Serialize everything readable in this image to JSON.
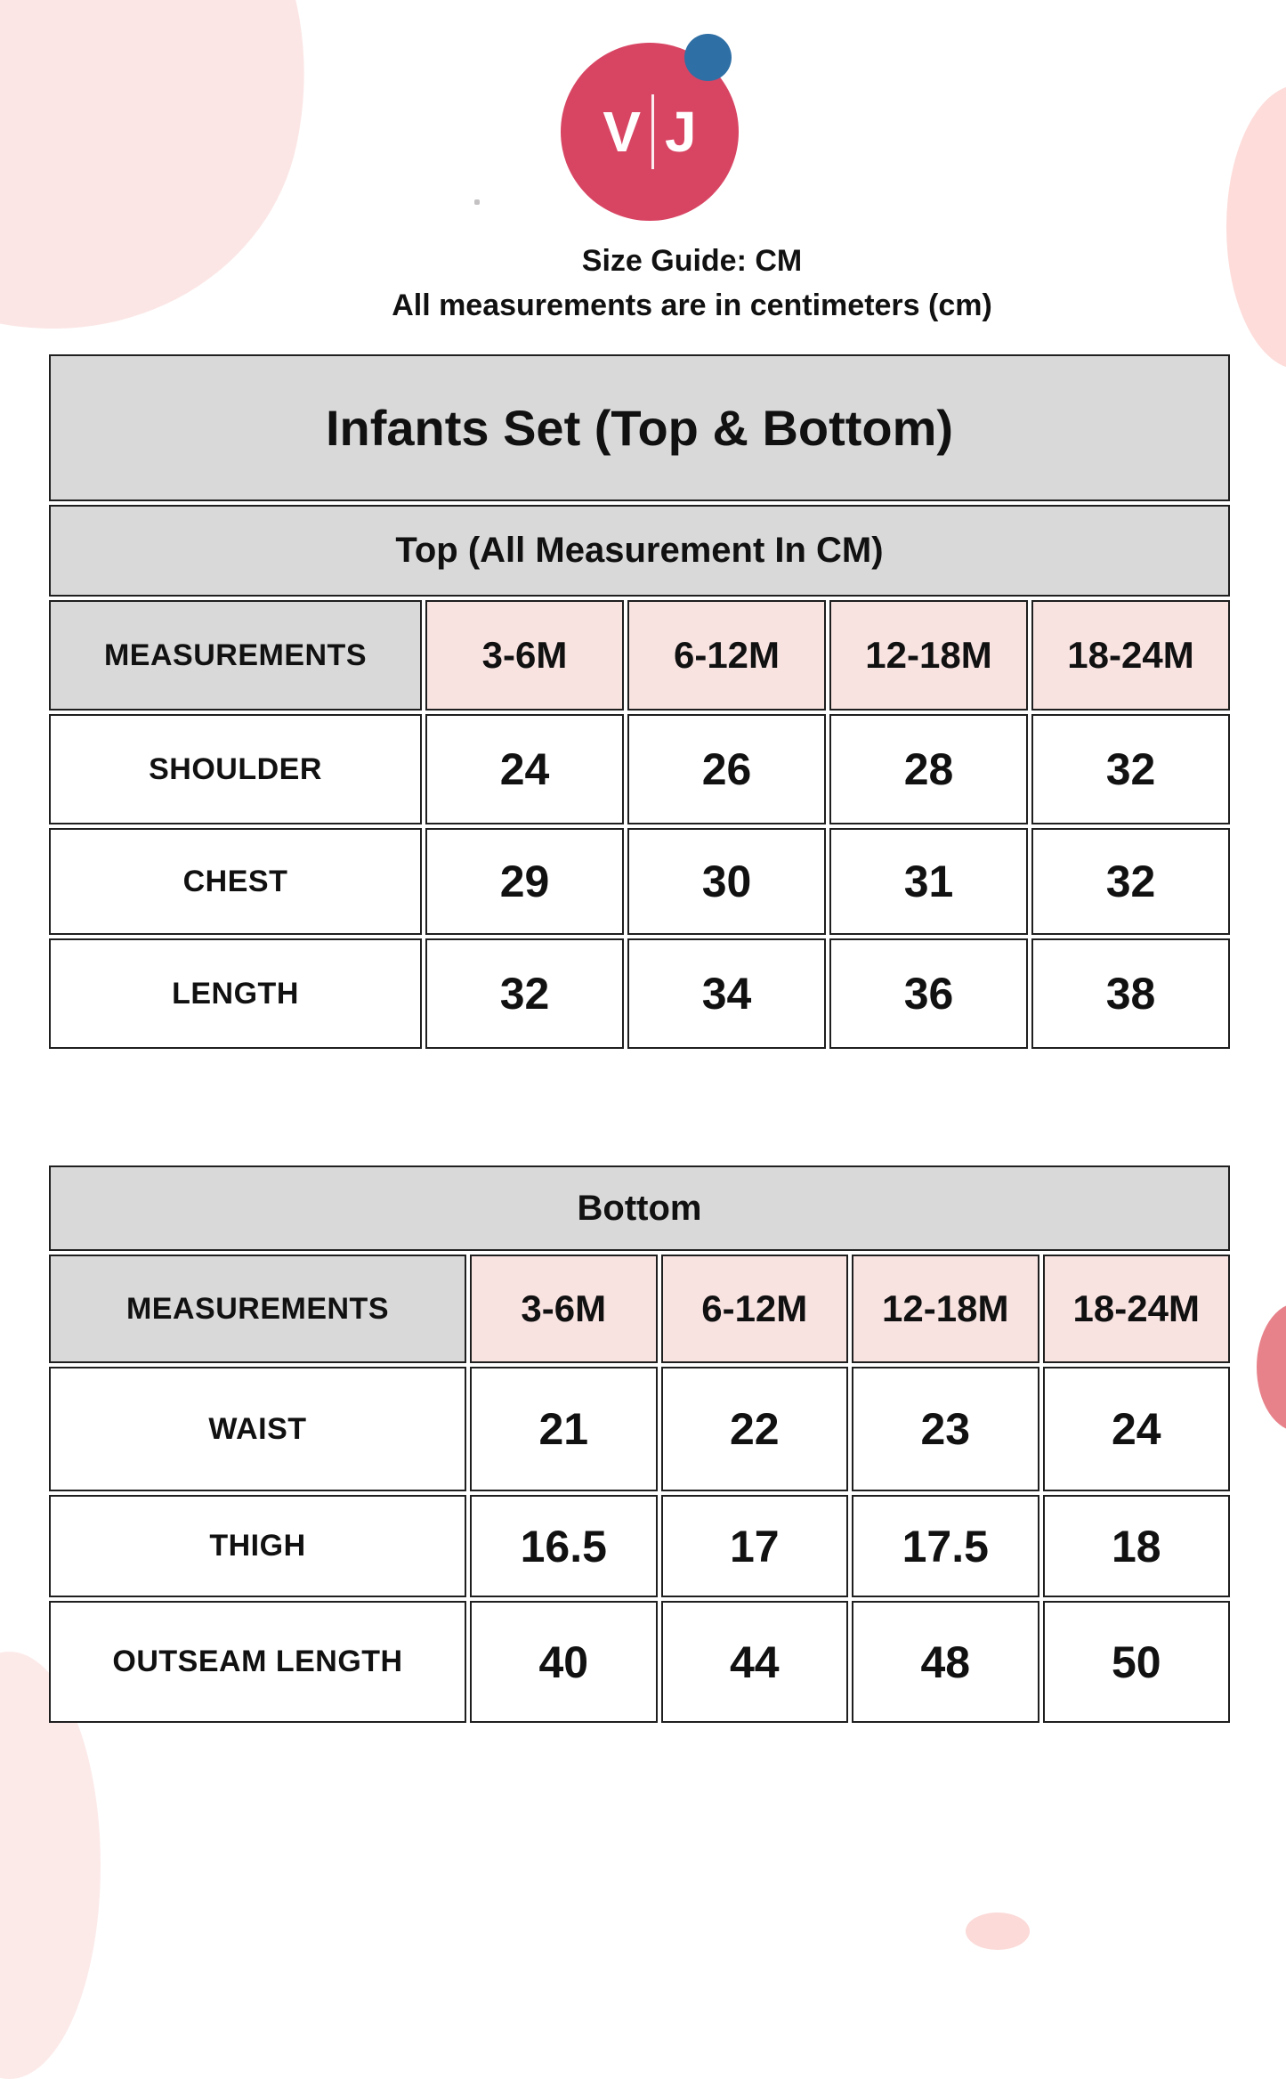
{
  "brand": {
    "logo_left_letter": "V",
    "logo_right_letter": "J",
    "logo_circle_color": "#d84563",
    "logo_dot_color": "#2e6fa5"
  },
  "header": {
    "title": "Size Guide: CM",
    "subtitle": "All measurements are in centimeters (cm)"
  },
  "top_section": {
    "title": "Infants Set (Top & Bottom)",
    "subtitle": "Top (All Measurement In CM)",
    "columns": [
      "MEASUREMENTS",
      "3-6M",
      "6-12M",
      "12-18M",
      "18-24M"
    ],
    "rows": [
      {
        "label": "SHOULDER",
        "values": [
          "24",
          "26",
          "28",
          "32"
        ]
      },
      {
        "label": "CHEST",
        "values": [
          "29",
          "30",
          "31",
          "32"
        ]
      },
      {
        "label": "LENGTH",
        "values": [
          "32",
          "34",
          "36",
          "38"
        ]
      }
    ]
  },
  "bottom_section": {
    "title": "Bottom",
    "columns": [
      "MEASUREMENTS",
      "3-6M",
      "6-12M",
      "12-18M",
      "18-24M"
    ],
    "rows": [
      {
        "label": "WAIST",
        "values": [
          "21",
          "22",
          "23",
          "24"
        ]
      },
      {
        "label": "THIGH",
        "values": [
          "16.5",
          "17",
          "17.5",
          "18"
        ]
      },
      {
        "label": "OUTSEAM LENGTH",
        "values": [
          "40",
          "44",
          "48",
          "50"
        ]
      }
    ]
  },
  "colors": {
    "table_header_gray": "#d9d9d9",
    "size_cell_pink": "#f8e3e1",
    "border": "#1f1f1f",
    "background": "#ffffff",
    "blob_light_pink": "#fbe6e5",
    "blob_pink": "#fddcda",
    "blob_salmon": "#e8828a"
  }
}
